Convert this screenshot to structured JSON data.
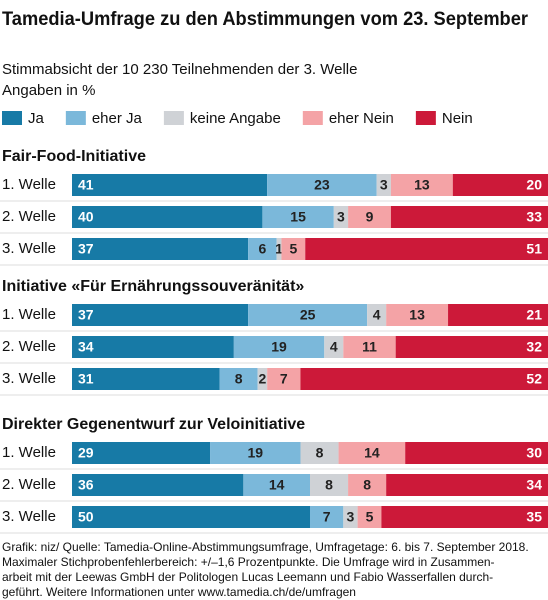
{
  "header": {
    "title": "Tamedia-Umfrage zu den Abstimmungen vom 23. September",
    "subtitle": "Stimmabsicht der 10 230 Teilnehmenden der 3. Welle",
    "unit": "Angaben in %"
  },
  "chart_data": [
    {
      "type": "bar",
      "orientation": "horizontal",
      "stacked": true,
      "title": "Fair-Food-Initiative",
      "categories": [
        "1. Welle",
        "2. Welle",
        "3. Welle"
      ],
      "xlim": [
        0,
        100
      ],
      "series": [
        {
          "name": "Ja",
          "color": "#177aa6",
          "values": [
            41,
            40,
            37
          ]
        },
        {
          "name": "eher Ja",
          "color": "#7bb8da",
          "values": [
            23,
            15,
            6
          ]
        },
        {
          "name": "keine Angabe",
          "color": "#cfd2d6",
          "values": [
            3,
            3,
            1
          ]
        },
        {
          "name": "eher Nein",
          "color": "#f4a3a6",
          "values": [
            13,
            9,
            5
          ]
        },
        {
          "name": "Nein",
          "color": "#cc1939",
          "values": [
            20,
            33,
            51
          ]
        }
      ]
    },
    {
      "type": "bar",
      "orientation": "horizontal",
      "stacked": true,
      "title": "Initiative «Für Ernährungssouveränität»",
      "categories": [
        "1. Welle",
        "2. Welle",
        "3. Welle"
      ],
      "xlim": [
        0,
        100
      ],
      "series": [
        {
          "name": "Ja",
          "color": "#177aa6",
          "values": [
            37,
            34,
            31
          ]
        },
        {
          "name": "eher Ja",
          "color": "#7bb8da",
          "values": [
            25,
            19,
            8
          ]
        },
        {
          "name": "keine Angabe",
          "color": "#cfd2d6",
          "values": [
            4,
            4,
            2
          ]
        },
        {
          "name": "eher Nein",
          "color": "#f4a3a6",
          "values": [
            13,
            11,
            7
          ]
        },
        {
          "name": "Nein",
          "color": "#cc1939",
          "values": [
            21,
            32,
            52
          ]
        }
      ]
    },
    {
      "type": "bar",
      "orientation": "horizontal",
      "stacked": true,
      "title": "Direkter Gegenentwurf zur Veloinitiative",
      "categories": [
        "1. Welle",
        "2. Welle",
        "3. Welle"
      ],
      "xlim": [
        0,
        100
      ],
      "series": [
        {
          "name": "Ja",
          "color": "#177aa6",
          "values": [
            29,
            36,
            50
          ]
        },
        {
          "name": "eher Ja",
          "color": "#7bb8da",
          "values": [
            19,
            14,
            7
          ]
        },
        {
          "name": "keine Angabe",
          "color": "#cfd2d6",
          "values": [
            8,
            8,
            3
          ]
        },
        {
          "name": "eher Nein",
          "color": "#f4a3a6",
          "values": [
            14,
            8,
            5
          ]
        },
        {
          "name": "Nein",
          "color": "#cc1939",
          "values": [
            30,
            34,
            35
          ]
        }
      ]
    }
  ],
  "source_lines": [
    "Grafik: niz/ Quelle: Tamedia-Online-Abstimmungsumfrage, Umfragetage: 6. bis 7. September 2018.",
    "Maximaler Stichprobenfehlerbereich: +/–1,6 Prozentpunkte. Die Umfrage wird in Zusammen-",
    "arbeit mit der Leewas GmbH der Politologen Lucas Leemann und Fabio Wasserfallen durch-",
    "geführt. Weitere Informationen unter www.tamedia.ch/de/umfragen"
  ]
}
